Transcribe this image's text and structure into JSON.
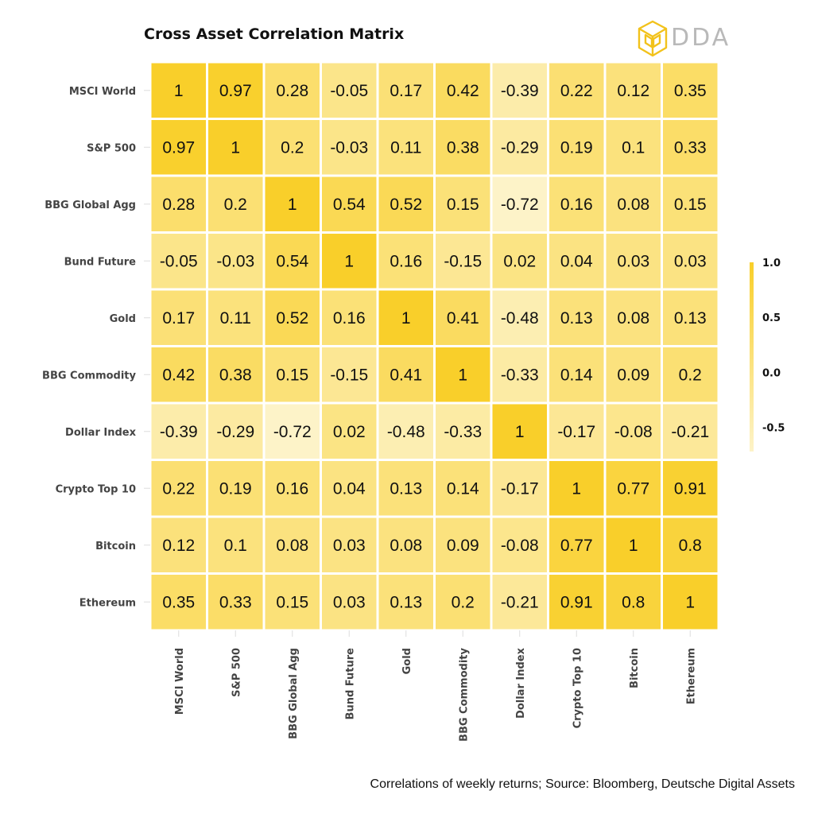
{
  "chart_data": {
    "type": "heatmap",
    "title": "Cross Asset Correlation Matrix",
    "rows": [
      "MSCI World",
      "S&P 500",
      "BBG Global Agg",
      "Bund Future",
      "Gold",
      "BBG Commodity",
      "Dollar Index",
      "Crypto Top 10",
      "Bitcoin",
      "Ethereum"
    ],
    "columns": [
      "MSCI World",
      "S&P 500",
      "BBG Global Agg",
      "Bund Future",
      "Gold",
      "BBG Commodity",
      "Dollar Index",
      "Crypto Top 10",
      "Bitcoin",
      "Ethereum"
    ],
    "values": [
      [
        1,
        0.97,
        0.28,
        -0.05,
        0.17,
        0.42,
        -0.39,
        0.22,
        0.12,
        0.35
      ],
      [
        0.97,
        1,
        0.2,
        -0.03,
        0.11,
        0.38,
        -0.29,
        0.19,
        0.1,
        0.33
      ],
      [
        0.28,
        0.2,
        1,
        0.54,
        0.52,
        0.15,
        -0.72,
        0.16,
        0.08,
        0.15
      ],
      [
        -0.05,
        -0.03,
        0.54,
        1,
        0.16,
        -0.15,
        0.02,
        0.04,
        0.03,
        0.03
      ],
      [
        0.17,
        0.11,
        0.52,
        0.16,
        1,
        0.41,
        -0.48,
        0.13,
        0.08,
        0.13
      ],
      [
        0.42,
        0.38,
        0.15,
        -0.15,
        0.41,
        1,
        -0.33,
        0.14,
        0.09,
        0.2
      ],
      [
        -0.39,
        -0.29,
        -0.72,
        0.02,
        -0.48,
        -0.33,
        1,
        -0.17,
        -0.08,
        -0.21
      ],
      [
        0.22,
        0.19,
        0.16,
        0.04,
        0.13,
        0.14,
        -0.17,
        1,
        0.77,
        0.91
      ],
      [
        0.12,
        0.1,
        0.08,
        0.03,
        0.08,
        0.09,
        -0.08,
        0.77,
        1,
        0.8
      ],
      [
        0.35,
        0.33,
        0.15,
        0.03,
        0.13,
        0.2,
        -0.21,
        0.91,
        0.8,
        1
      ]
    ],
    "color_range": [
      -0.72,
      1
    ],
    "colors": {
      "low": "#fdf3c8",
      "high": "#f9cf2a"
    },
    "legend": {
      "placement": "right",
      "ticks": [
        "1.0",
        "0.5",
        "0.0",
        "-0.5"
      ],
      "tick_values": [
        1.0,
        0.5,
        0.0,
        -0.5
      ]
    }
  },
  "brand": {
    "name": "DDA",
    "color": "#f2c21b",
    "logo_icon": "dda-cube-icon"
  },
  "footer": {
    "note": "Correlations of weekly returns; Source: Bloomberg, Deutsche Digital Assets"
  }
}
